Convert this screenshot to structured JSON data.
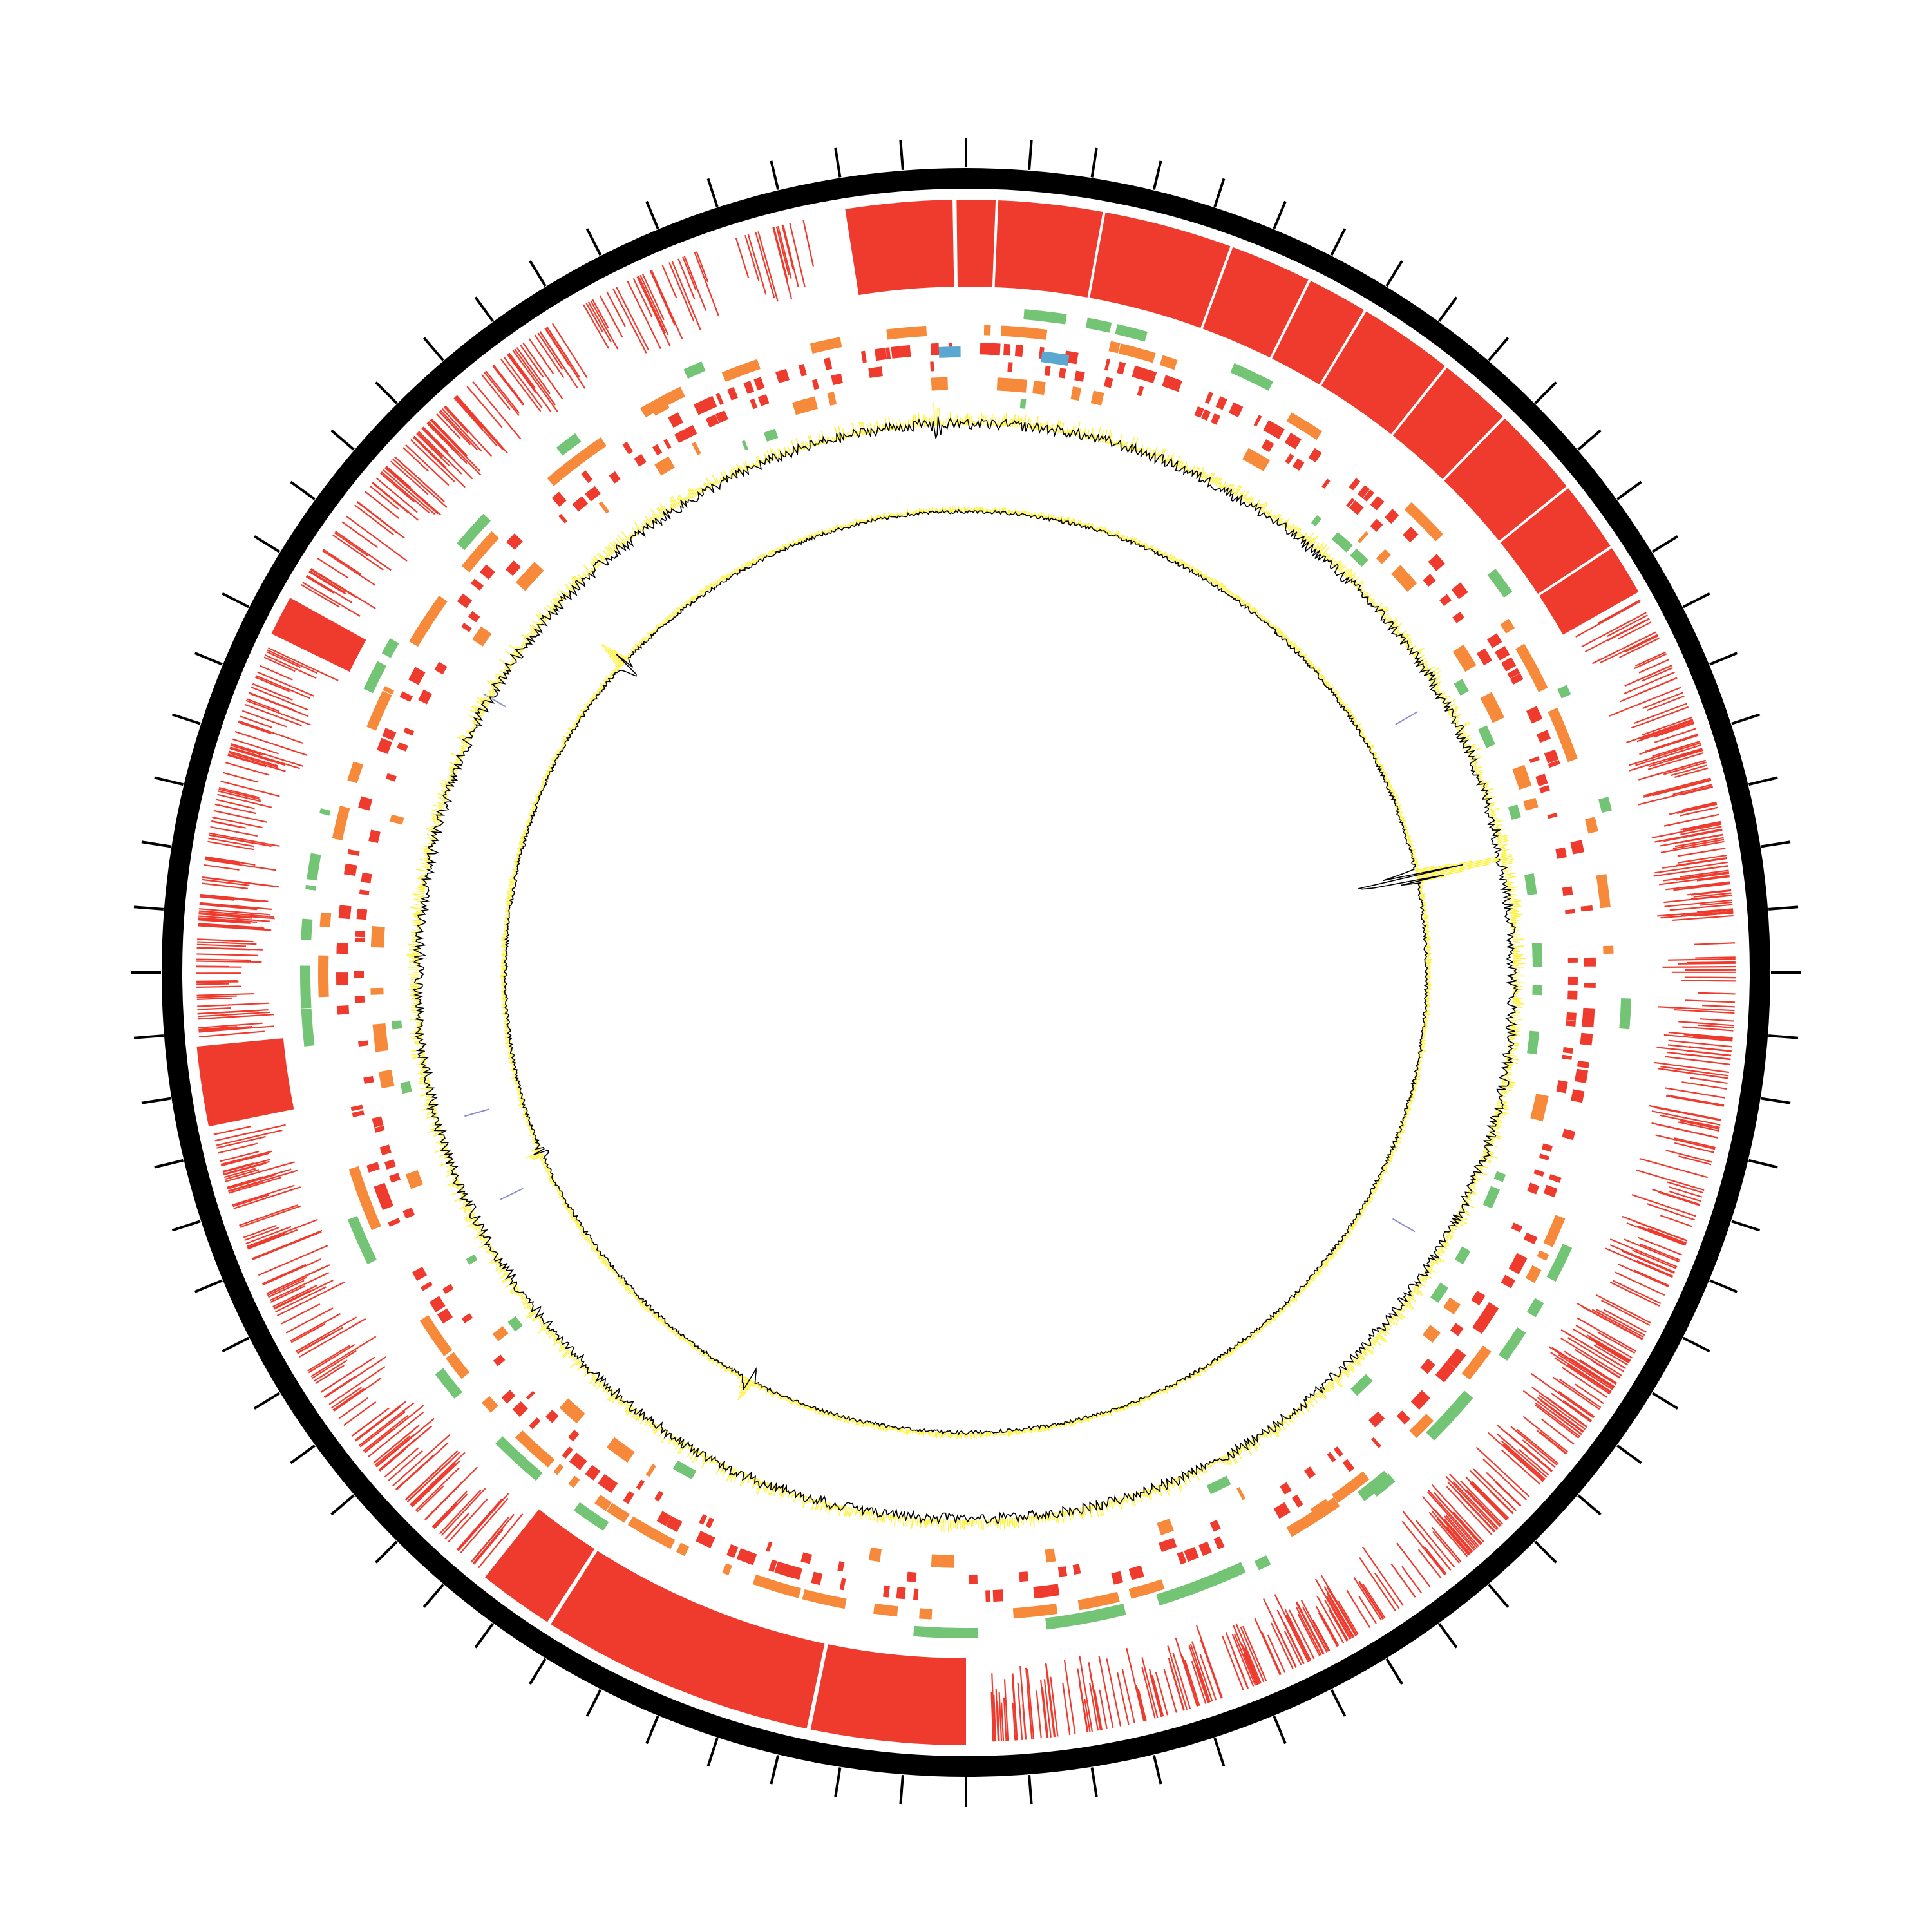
{
  "colors": {
    "background": "#ffffff",
    "backbone": "#000000",
    "tick": "#000000",
    "block": "#ee3b2e",
    "orange_feature": "#f7893b",
    "green_feature": "#74c476",
    "blue_feature": "#5aa7d1",
    "gc_line": "#000000",
    "gc_fill": "#fff23a",
    "misc_line": "#8c8cd0"
  },
  "tracks": [
    {
      "id": "backbone",
      "type": "ring"
    },
    {
      "id": "ticks",
      "type": "ticks",
      "count": 80
    },
    {
      "id": "sequence-blocks",
      "type": "blocks",
      "color_key": "block"
    },
    {
      "id": "feature-green-a",
      "type": "features",
      "color_key": "green_feature"
    },
    {
      "id": "feature-orange-a",
      "type": "features",
      "color_key": "orange_feature"
    },
    {
      "id": "feature-red-a",
      "type": "features",
      "color_key": "block"
    },
    {
      "id": "feature-blue",
      "type": "features",
      "color_key": "blue_feature"
    },
    {
      "id": "feature-red-b",
      "type": "features",
      "color_key": "block"
    },
    {
      "id": "feature-orange-b",
      "type": "features",
      "color_key": "orange_feature"
    },
    {
      "id": "gc-content",
      "type": "signal"
    },
    {
      "id": "gc-skew",
      "type": "signal"
    }
  ],
  "blocks": [
    {
      "start": 351,
      "end": 359
    },
    {
      "start": 359.3,
      "end": 2.2
    },
    {
      "start": 2.4,
      "end": 10.2
    },
    {
      "start": 10.4,
      "end": 20
    },
    {
      "start": 20.2,
      "end": 26.3
    },
    {
      "start": 26.5,
      "end": 31
    },
    {
      "start": 31.2,
      "end": 38.3
    },
    {
      "start": 38.5,
      "end": 44
    },
    {
      "start": 44.2,
      "end": 51
    },
    {
      "start": 51.2,
      "end": 56.5
    },
    {
      "start": 56.7,
      "end": 60.5
    },
    {
      "start": 180,
      "end": 191.6
    },
    {
      "start": 191.9,
      "end": 212.5
    },
    {
      "start": 212.8,
      "end": 218.5
    },
    {
      "start": 258.5,
      "end": 264.5
    },
    {
      "start": 296,
      "end": 299
    }
  ],
  "dense_sectors": [
    {
      "start": 61,
      "end": 118,
      "density": 0.55
    },
    {
      "start": 118,
      "end": 142,
      "density": 0.75
    },
    {
      "start": 142,
      "end": 150,
      "density": 0.4
    },
    {
      "start": 150,
      "end": 155,
      "density": 0.85
    },
    {
      "start": 155,
      "end": 178,
      "density": 0.6
    },
    {
      "start": 219,
      "end": 258,
      "density": 0.55
    },
    {
      "start": 265,
      "end": 295,
      "density": 0.6
    },
    {
      "start": 300,
      "end": 328,
      "density": 0.55
    },
    {
      "start": 330,
      "end": 348,
      "density": 0.35
    }
  ],
  "gc_spikes": [
    {
      "track": "outer",
      "angle": 357,
      "amp": 30
    },
    {
      "track": "inner",
      "angle": 78,
      "amp": 140
    },
    {
      "track": "inner",
      "angle": 312,
      "amp": 40
    },
    {
      "track": "inner",
      "angle": 208,
      "amp": 30
    },
    {
      "track": "inner",
      "angle": 247,
      "amp": 18
    }
  ]
}
